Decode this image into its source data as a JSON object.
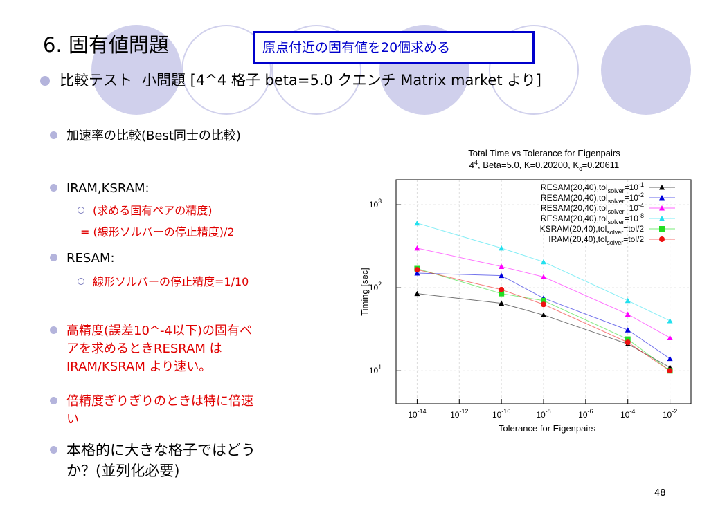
{
  "slide": {
    "title": "6. 固有値問題",
    "callout": "原点付近の固有値を20個求める",
    "subtitle_main": "比較テスト",
    "subtitle_rest": "小問題 [4^4 格子 beta=5.0 クエンチ Matrix market より]",
    "page_number": "48"
  },
  "bullets": {
    "b1": "加速率の比較(Best同士の比較)",
    "b2": "IRAM,KSRAM:",
    "b2_sub1": "(求める固有ペアの精度)",
    "b2_sub2": "= (線形ソルバーの停止精度)/2",
    "b3": "RESAM:",
    "b3_sub1": "線形ソルバーの停止精度=1/10",
    "b4_line1": "高精度(誤差10^-4以下)の固有ペ",
    "b4_line2": "アを求めるときRESRAM は",
    "b4_line3": "IRAM/KSRAM より速い。",
    "b5_line1": "倍精度ぎりぎりのときは特に倍速",
    "b5_line2": "い",
    "b6_line1": "本格的に大きな格子ではどう",
    "b6_line2": "か？(並列化必要)"
  },
  "chart_data": {
    "type": "line",
    "title": "Total Time vs Tolerance for Eigenpairs",
    "subtitle": "4^4, Beta=5.0, K=0.20200, K_c=0.20611",
    "xlabel": "Tolerance for Eigenpairs",
    "ylabel": "Timing [sec]",
    "x_scale": "log",
    "y_scale": "log",
    "xlim": [
      1e-15,
      0.1
    ],
    "ylim": [
      4,
      2000
    ],
    "x_ticks": [
      -14,
      -12,
      -10,
      -8,
      -6,
      -4,
      -2
    ],
    "y_ticks": [
      1,
      2,
      3
    ],
    "legend_position": "top-right",
    "series": [
      {
        "name_main": "RESAM(20,40),tol",
        "name_sub": "solver",
        "name_eq": "=10",
        "name_sup": "-1",
        "color": "#000000",
        "marker": "triangle",
        "points": [
          [
            1e-14,
            85
          ],
          [
            1e-10,
            65
          ],
          [
            1e-08,
            47
          ],
          [
            0.0001,
            21
          ],
          [
            0.01,
            11
          ]
        ]
      },
      {
        "name_main": "RESAM(20,40),tol",
        "name_sub": "solver",
        "name_eq": "=10",
        "name_sup": "-2",
        "color": "#0000dd",
        "marker": "triangle",
        "points": [
          [
            1e-14,
            150
          ],
          [
            1e-10,
            140
          ],
          [
            1e-08,
            75
          ],
          [
            0.0001,
            31
          ],
          [
            0.01,
            14
          ]
        ]
      },
      {
        "name_main": "RESAM(20,40),tol",
        "name_sub": "solver",
        "name_eq": "=10",
        "name_sup": "-4",
        "color": "#ff00ff",
        "marker": "triangle",
        "points": [
          [
            1e-14,
            300
          ],
          [
            1e-10,
            180
          ],
          [
            1e-08,
            135
          ],
          [
            0.0001,
            48
          ],
          [
            0.01,
            25
          ]
        ]
      },
      {
        "name_main": "RESAM(20,40),tol",
        "name_sub": "solver",
        "name_eq": "=10",
        "name_sup": "-8",
        "color": "#22e0ee",
        "marker": "triangle",
        "points": [
          [
            1e-14,
            600
          ],
          [
            1e-10,
            300
          ],
          [
            1e-08,
            205
          ],
          [
            0.0001,
            70
          ],
          [
            0.01,
            40
          ]
        ]
      },
      {
        "name_main": "KSRAM(20,40),tol",
        "name_sub": "solver",
        "name_eq": "=tol/2",
        "name_sup": "",
        "color": "#22dd22",
        "marker": "square",
        "points": [
          [
            1e-14,
            170
          ],
          [
            1e-10,
            85
          ],
          [
            1e-08,
            70
          ],
          [
            0.0001,
            24
          ],
          [
            0.01,
            10
          ]
        ]
      },
      {
        "name_main": "IRAM(20,40),tol",
        "name_sub": "solver",
        "name_eq": "=tol/2",
        "name_sup": "",
        "color": "#ee1111",
        "marker": "circle",
        "points": [
          [
            1e-14,
            165
          ],
          [
            1e-10,
            95
          ],
          [
            1e-08,
            63
          ],
          [
            0.0001,
            22
          ],
          [
            0.01,
            10
          ]
        ]
      }
    ]
  }
}
